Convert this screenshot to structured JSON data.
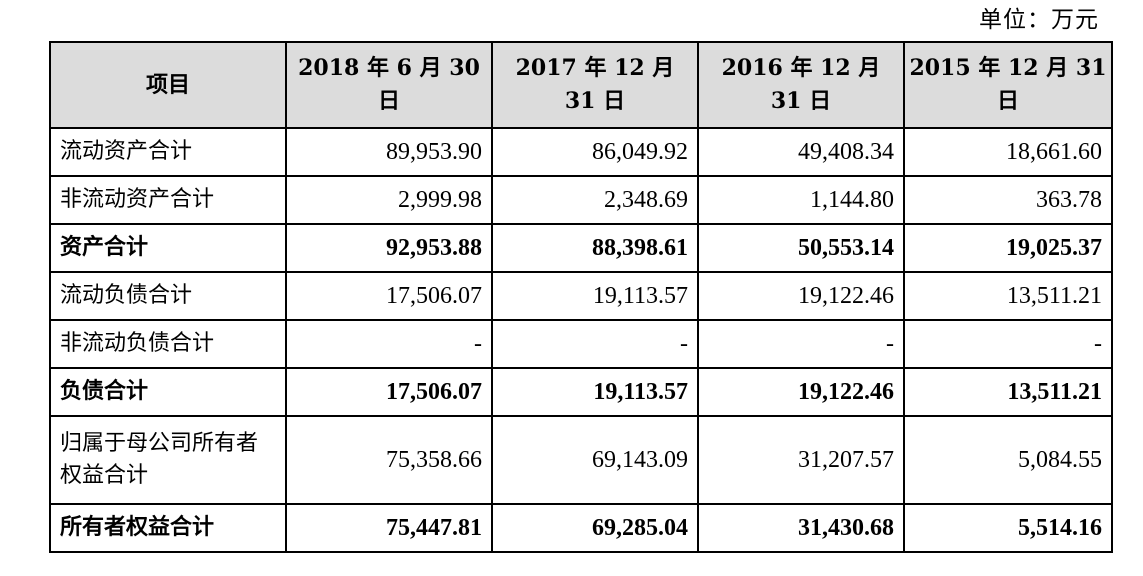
{
  "unit_label": "单位：万元",
  "table": {
    "headers": [
      "项目",
      "2018 年 6 月 30 日",
      "2017 年 12 月 31 日",
      "2016 年 12 月 31 日",
      "2015 年 12 月 31 日"
    ],
    "rows": [
      {
        "label": "流动资产合计",
        "values": [
          "89,953.90",
          "86,049.92",
          "49,408.34",
          "18,661.60"
        ],
        "bold": false
      },
      {
        "label": "非流动资产合计",
        "values": [
          "2,999.98",
          "2,348.69",
          "1,144.80",
          "363.78"
        ],
        "bold": false
      },
      {
        "label": "资产合计",
        "values": [
          "92,953.88",
          "88,398.61",
          "50,553.14",
          "19,025.37"
        ],
        "bold": true
      },
      {
        "label": "流动负债合计",
        "values": [
          "17,506.07",
          "19,113.57",
          "19,122.46",
          "13,511.21"
        ],
        "bold": false
      },
      {
        "label": "非流动负债合计",
        "values": [
          "-",
          "-",
          "-",
          "-"
        ],
        "bold": false
      },
      {
        "label": "负债合计",
        "values": [
          "17,506.07",
          "19,113.57",
          "19,122.46",
          "13,511.21"
        ],
        "bold": true
      },
      {
        "label": "归属于母公司所有者权益合计",
        "values": [
          "75,358.66",
          "69,143.09",
          "31,207.57",
          "5,084.55"
        ],
        "bold": false
      },
      {
        "label": "所有者权益合计",
        "values": [
          "75,447.81",
          "69,285.04",
          "31,430.68",
          "5,514.16"
        ],
        "bold": true
      }
    ]
  }
}
